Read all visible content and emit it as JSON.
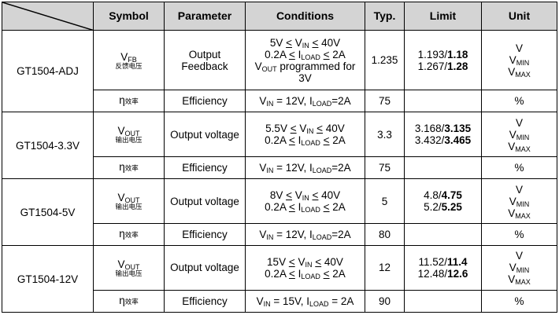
{
  "headers": {
    "symbol": "Symbol",
    "parameter": "Parameter",
    "conditions": "Conditions",
    "typ": "Typ.",
    "limit": "Limit",
    "unit": "Unit"
  },
  "common": {
    "V": "V",
    "I": "I",
    "IN": "IN",
    "OUT": "OUT",
    "LOAD": "LOAD",
    "FB": "FB",
    "MIN": "MIN",
    "MAX": "MAX",
    "eta": "η",
    "eff_cn": "效率",
    "fb_cn": "反馈电压",
    "out_cn": "输出电压",
    "le": "<",
    "eq": "=",
    "comma": ",",
    "slash": "/",
    "percent": "%",
    "efficiency": "Efficiency",
    "output_voltage": "Output voltage",
    "output_feedback_1": "Output",
    "output_feedback_2": "Feedback",
    "vin_12v": " = 12V, ",
    "vin_15v": " = 15V, ",
    "load_2a": "=2A",
    "load_2a_sp": " = 2A",
    "amp_02": "0.2A ",
    "amp_2": " 2A",
    "vout_prog_1": " programmed for",
    "vout_prog_2": "3V"
  },
  "rows": [
    {
      "device": "GT1504-ADJ",
      "vin_min": "5V ",
      "vin_max": " 40V",
      "typ": "1.235",
      "limit_min_plain": "1.193/",
      "limit_min_bold": "1.18",
      "limit_max_plain": "1.267/",
      "limit_max_bold": "1.28",
      "eff_typ": "75"
    },
    {
      "device": "GT1504-3.3V",
      "vin_min": "5.5V ",
      "vin_max": " 40V",
      "typ": "3.3",
      "limit_min_plain": "3.168/",
      "limit_min_bold": "3.135",
      "limit_max_plain": "3.432/",
      "limit_max_bold": "3.465",
      "eff_typ": "75"
    },
    {
      "device": "GT1504-5V",
      "vin_min": "8V ",
      "vin_max": " 40V",
      "typ": "5",
      "limit_min_plain": "4.8/",
      "limit_min_bold": "4.75",
      "limit_max_plain": "5.2/",
      "limit_max_bold": "5.25",
      "eff_typ": "80"
    },
    {
      "device": "GT1504-12V",
      "vin_min": "15V ",
      "vin_max": " 40V",
      "typ": "12",
      "limit_min_plain": "11.52/",
      "limit_min_bold": "11.4",
      "limit_max_plain": "12.48/",
      "limit_max_bold": "12.6",
      "eff_typ": "90"
    }
  ]
}
